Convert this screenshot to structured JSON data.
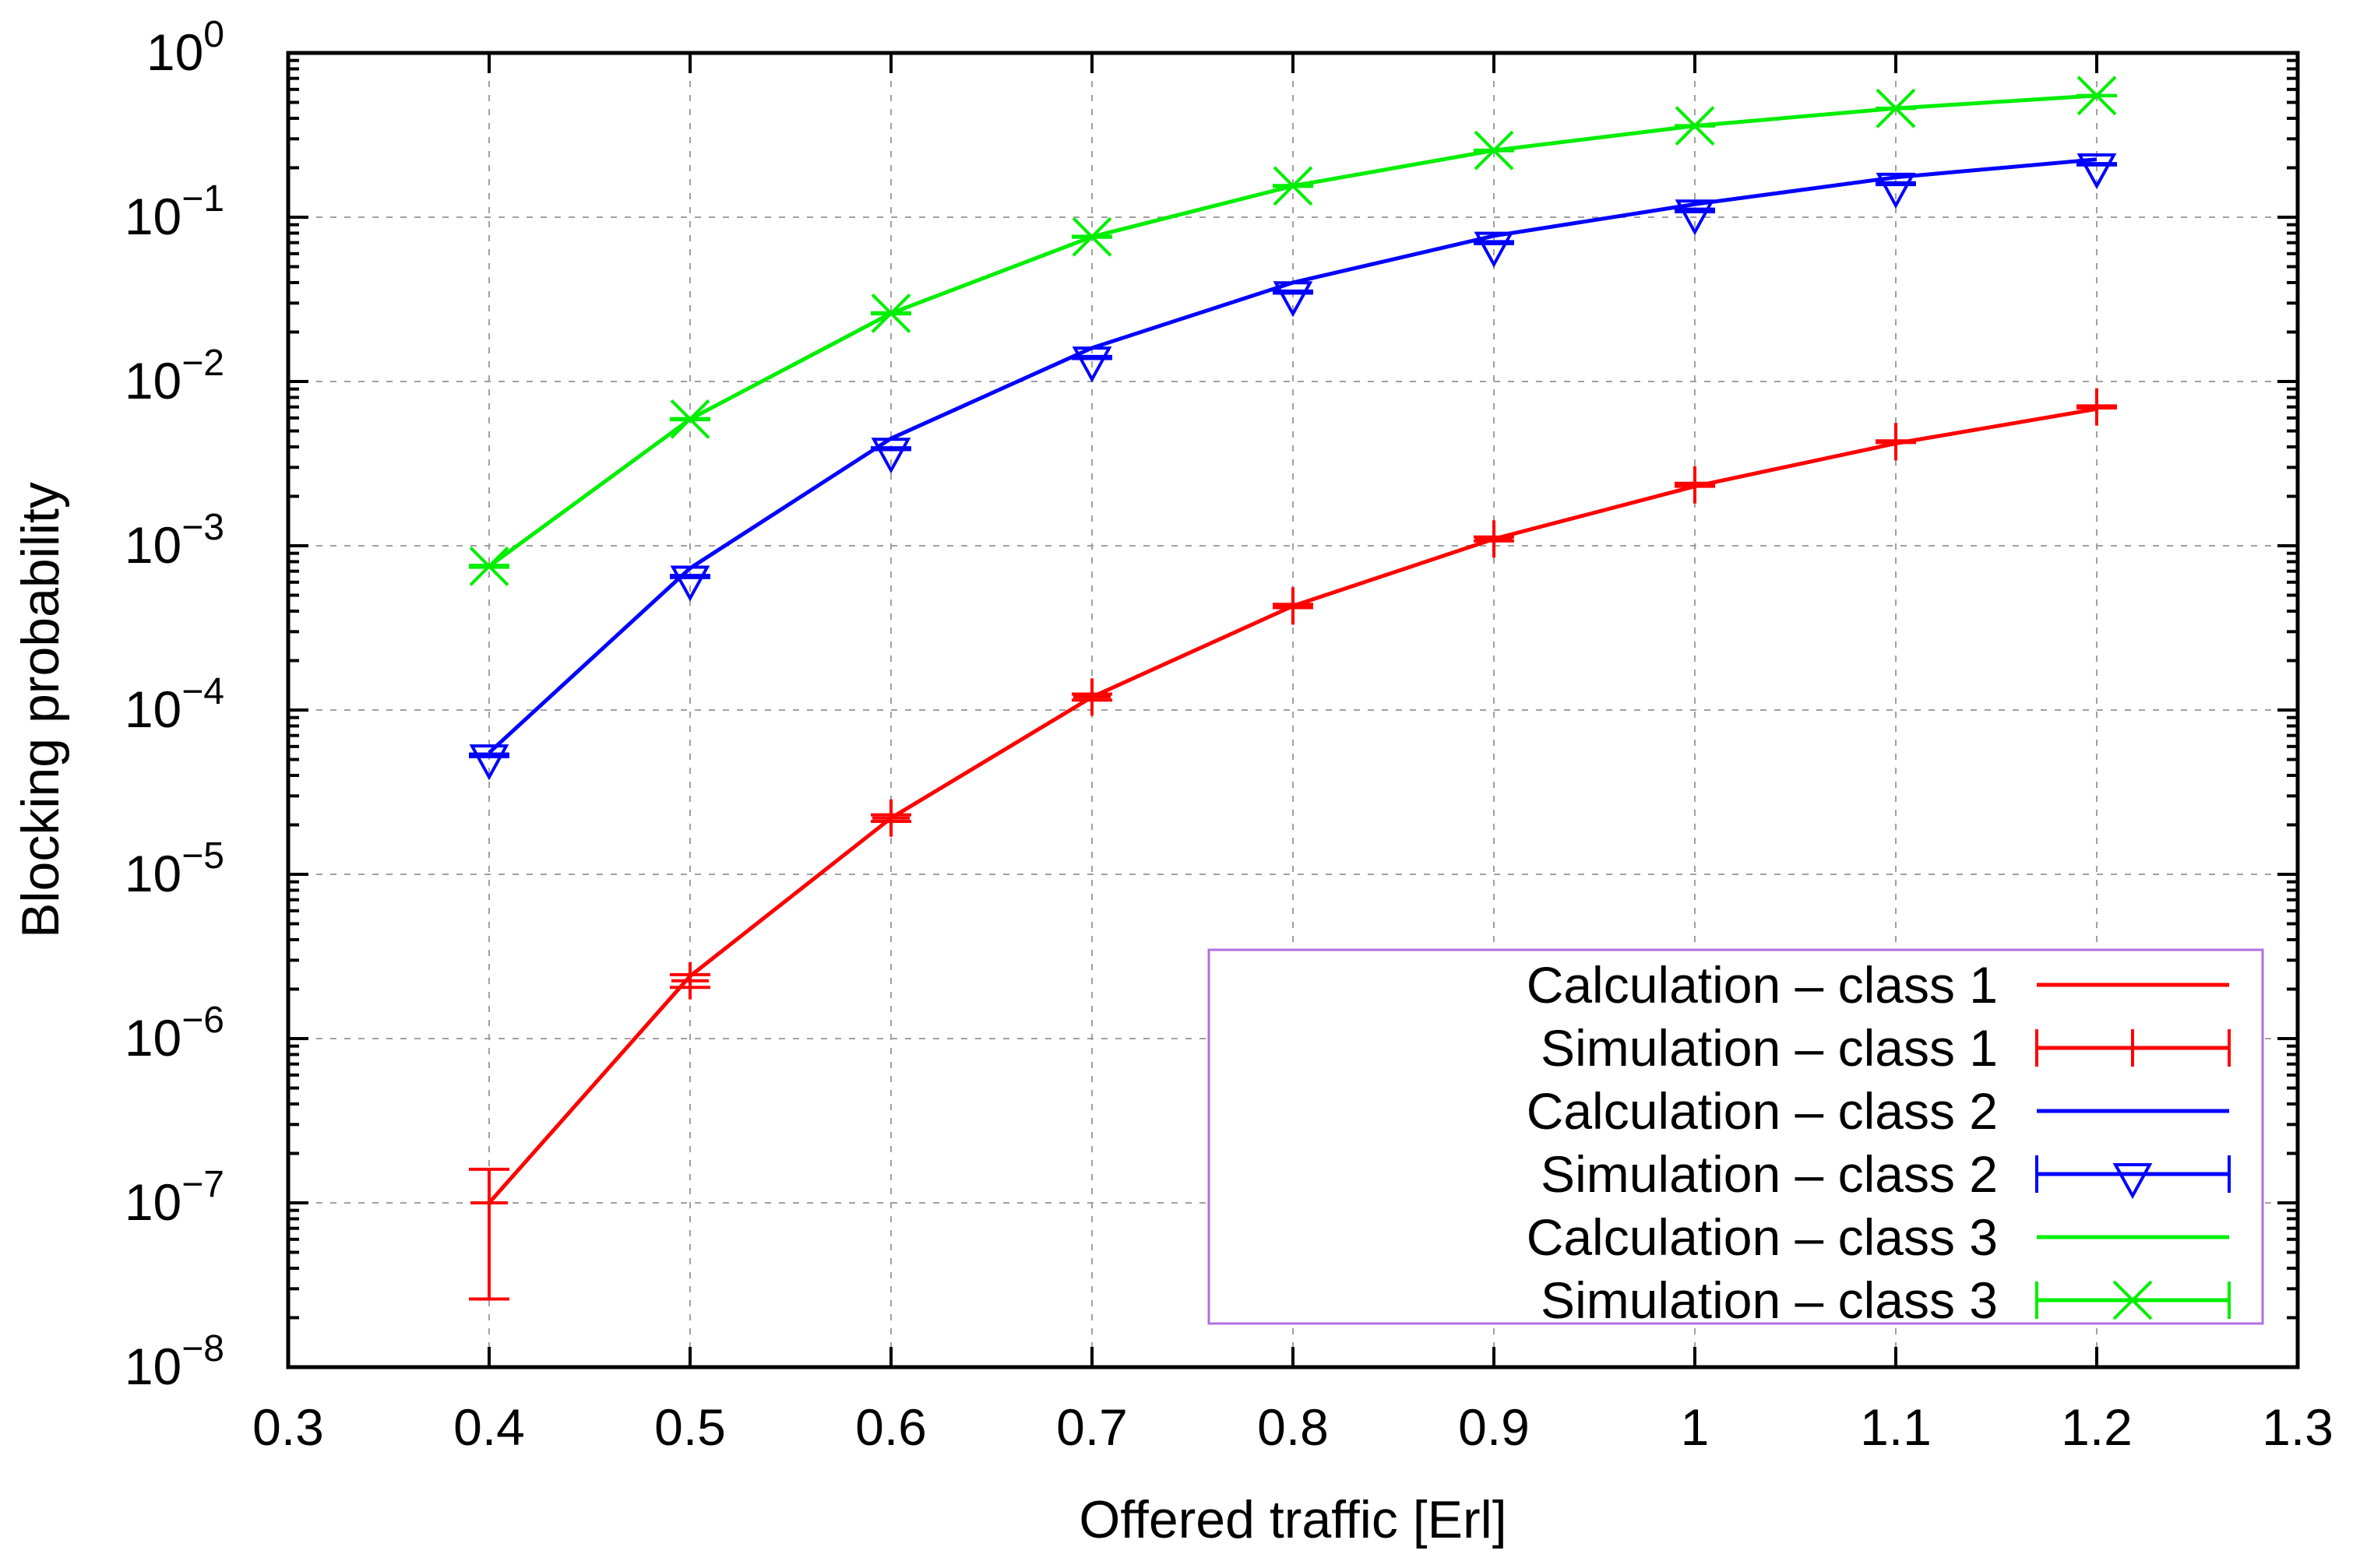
{
  "chart_data": {
    "type": "line",
    "xlabel": "Offered traffic [Erl]",
    "ylabel": "Blocking probability",
    "xlim": [
      0.3,
      1.3
    ],
    "ylim": [
      1e-08,
      1
    ],
    "yscale": "log",
    "grid": true,
    "legend_position": "bottom-right",
    "x_ticks": [
      "0.3",
      "0.4",
      "0.5",
      "0.6",
      "0.7",
      "0.8",
      "0.9",
      "1",
      "1.1",
      "1.2",
      "1.3"
    ],
    "x_tick_values": [
      0.3,
      0.4,
      0.5,
      0.6,
      0.7,
      0.8,
      0.9,
      1.0,
      1.1,
      1.2,
      1.3
    ],
    "y_ticks": [
      {
        "base": "10",
        "exp": "0",
        "value": 1
      },
      {
        "base": "10",
        "exp": "−1",
        "value": 0.1
      },
      {
        "base": "10",
        "exp": "−2",
        "value": 0.01
      },
      {
        "base": "10",
        "exp": "−3",
        "value": 0.001
      },
      {
        "base": "10",
        "exp": "−4",
        "value": 0.0001
      },
      {
        "base": "10",
        "exp": "−5",
        "value": 1e-05
      },
      {
        "base": "10",
        "exp": "−6",
        "value": 1e-06
      },
      {
        "base": "10",
        "exp": "−7",
        "value": 1e-07
      },
      {
        "base": "10",
        "exp": "−8",
        "value": 1e-08
      }
    ],
    "x": [
      0.4,
      0.5,
      0.6,
      0.7,
      0.8,
      0.9,
      1.0,
      1.1,
      1.2
    ],
    "series": [
      {
        "name": "Calculation – class 1",
        "kind": "line",
        "color": "#ff0000",
        "values": [
          1e-07,
          2.4e-06,
          2.2e-05,
          0.00012,
          0.00043,
          0.0011,
          0.0023,
          0.0042,
          0.0068
        ]
      },
      {
        "name": "Simulation – class 1",
        "kind": "errorbar",
        "marker": "plus",
        "color": "#ff0000",
        "values": [
          1e-07,
          2.25e-06,
          2.2e-05,
          0.00012,
          0.00043,
          0.0011,
          0.00235,
          0.0043,
          0.007
        ],
        "lower": [
          2.6e-08,
          2.05e-06,
          2.1e-05,
          0.000115,
          0.00042,
          0.00107,
          0.0023,
          0.00425,
          0.0069
        ],
        "upper": [
          1.6e-07,
          2.45e-06,
          2.3e-05,
          0.000125,
          0.00044,
          0.00113,
          0.0024,
          0.00435,
          0.0071
        ]
      },
      {
        "name": "Calculation – class 2",
        "kind": "line",
        "color": "#0000ff",
        "values": [
          5.5e-05,
          0.00073,
          0.0045,
          0.016,
          0.04,
          0.077,
          0.12,
          0.175,
          0.225
        ]
      },
      {
        "name": "Simulation – class 2",
        "kind": "errorbar",
        "marker": "triangle-down",
        "color": "#0000ff",
        "values": [
          5.3e-05,
          0.00065,
          0.0039,
          0.014,
          0.035,
          0.07,
          0.11,
          0.16,
          0.21
        ],
        "lower": [
          5.2e-05,
          0.00064,
          0.00385,
          0.0138,
          0.0345,
          0.069,
          0.108,
          0.158,
          0.208
        ],
        "upper": [
          5.4e-05,
          0.00066,
          0.00395,
          0.0142,
          0.0355,
          0.071,
          0.112,
          0.162,
          0.212
        ]
      },
      {
        "name": "Calculation – class 3",
        "kind": "line",
        "color": "#00ee00",
        "values": [
          0.00075,
          0.0059,
          0.026,
          0.076,
          0.155,
          0.255,
          0.36,
          0.46,
          0.55
        ]
      },
      {
        "name": "Simulation – class 3",
        "kind": "errorbar",
        "marker": "cross",
        "color": "#00ee00",
        "values": [
          0.00075,
          0.0059,
          0.026,
          0.076,
          0.155,
          0.255,
          0.36,
          0.46,
          0.55
        ],
        "lower": [
          0.00074,
          0.00585,
          0.0258,
          0.0755,
          0.154,
          0.254,
          0.359,
          0.459,
          0.549
        ],
        "upper": [
          0.00076,
          0.00595,
          0.0262,
          0.0765,
          0.156,
          0.256,
          0.361,
          0.461,
          0.551
        ]
      }
    ],
    "legend": {
      "border_color": "#b070e0",
      "entries": [
        {
          "label": "Calculation – class 1",
          "series": 0
        },
        {
          "label": "Simulation – class 1",
          "series": 1
        },
        {
          "label": "Calculation – class 2",
          "series": 2
        },
        {
          "label": "Simulation – class 2",
          "series": 3
        },
        {
          "label": "Calculation – class 3",
          "series": 4
        },
        {
          "label": "Simulation – class 3",
          "series": 5
        }
      ]
    }
  }
}
